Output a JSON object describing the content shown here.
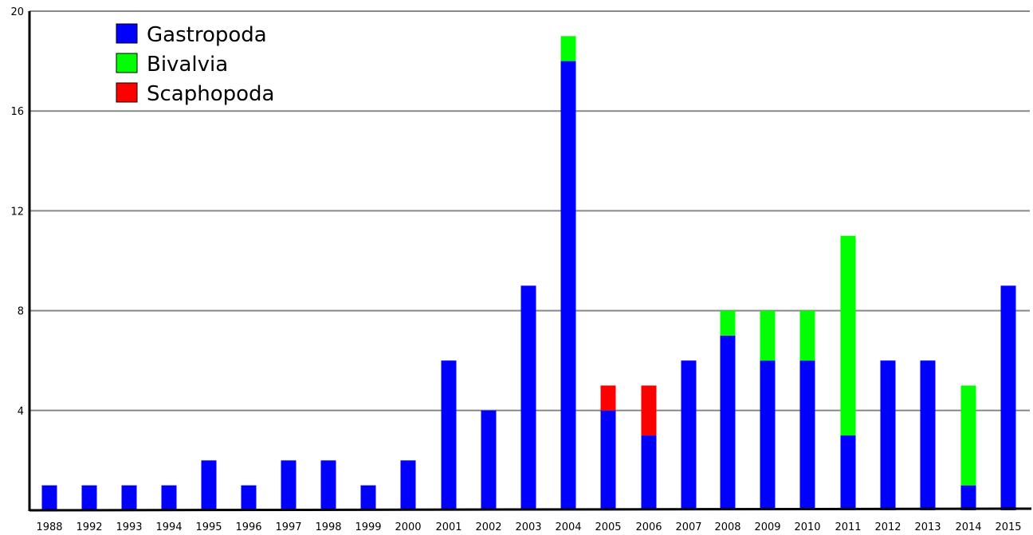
{
  "chart_data": {
    "type": "bar",
    "stacked": true,
    "title": "",
    "xlabel": "",
    "ylabel": "",
    "ylim": [
      0,
      20
    ],
    "yticks": [
      4,
      8,
      12,
      16,
      20
    ],
    "grid": true,
    "legend_position": "top-left",
    "categories": [
      "1988",
      "1992",
      "1993",
      "1994",
      "1995",
      "1996",
      "1997",
      "1998",
      "1999",
      "2000",
      "2001",
      "2002",
      "2003",
      "2004",
      "2005",
      "2006",
      "2007",
      "2008",
      "2009",
      "2010",
      "2011",
      "2012",
      "2013",
      "2014",
      "2015"
    ],
    "series": [
      {
        "name": "Gastropoda",
        "color": "#0000ff",
        "values": [
          1,
          1,
          1,
          1,
          2,
          1,
          2,
          2,
          1,
          2,
          6,
          4,
          9,
          18,
          4,
          3,
          6,
          7,
          6,
          6,
          3,
          6,
          6,
          1,
          9
        ]
      },
      {
        "name": "Bivalvia",
        "color": "#00ff00",
        "values": [
          0,
          0,
          0,
          0,
          0,
          0,
          0,
          0,
          0,
          0,
          0,
          0,
          0,
          1,
          0,
          0,
          0,
          1,
          2,
          2,
          8,
          0,
          0,
          4,
          0
        ]
      },
      {
        "name": "Scaphopoda",
        "color": "#ff0000",
        "values": [
          0,
          0,
          0,
          0,
          0,
          0,
          0,
          0,
          0,
          0,
          0,
          0,
          0,
          0,
          1,
          2,
          0,
          0,
          0,
          0,
          0,
          0,
          0,
          0,
          0
        ]
      }
    ]
  }
}
